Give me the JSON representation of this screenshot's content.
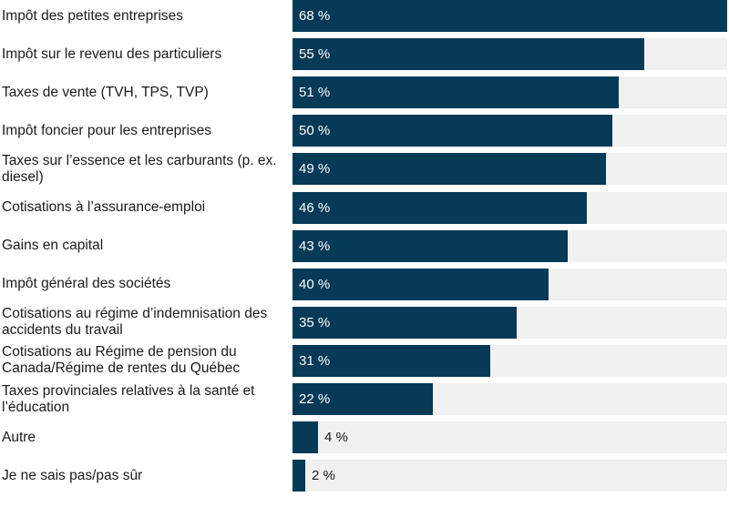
{
  "chart_data": {
    "type": "bar",
    "orientation": "horizontal",
    "categories": [
      "Impôt des petites entreprises",
      "Impôt sur le revenu des particuliers",
      "Taxes de vente (TVH, TPS, TVP)",
      "Impôt foncier pour les entreprises",
      "Taxes sur l’essence et les carburants (p. ex. diesel)",
      "Cotisations à l’assurance-emploi",
      "Gains en capital",
      "Impôt général des sociétés",
      "Cotisations au régime d’indemnisation des accidents du travail",
      "Cotisations au Régime de pension du Canada/Régime de rentes du Québec",
      "Taxes provinciales relatives à la santé et l’éducation",
      "Autre",
      "Je ne sais pas/pas sûr"
    ],
    "values": [
      68,
      55,
      51,
      50,
      49,
      46,
      43,
      40,
      35,
      31,
      22,
      4,
      2
    ],
    "value_labels": [
      "68 %",
      "55 %",
      "51 %",
      "50 %",
      "49 %",
      "46 %",
      "43 %",
      "40 %",
      "35 %",
      "31 %",
      "22 %",
      "4 %",
      "2 %"
    ],
    "xlim": [
      0,
      68
    ],
    "grid": false,
    "legend": "none",
    "colors": {
      "bar": "#073a57",
      "track": "#f1f1f2",
      "label_inside": "#ffffff",
      "label_outside": "#1b1b1b"
    }
  }
}
